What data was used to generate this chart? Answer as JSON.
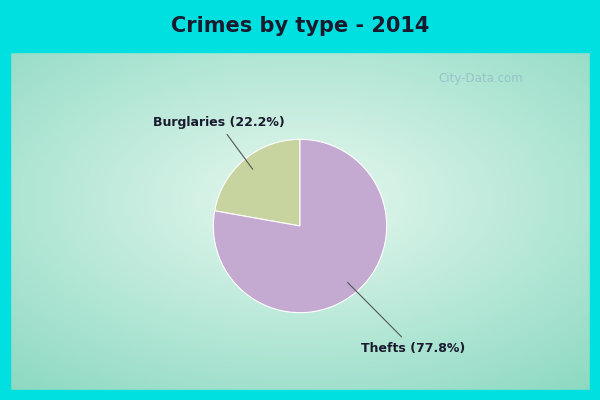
{
  "title": "Crimes by type - 2014",
  "slices": [
    22.2,
    77.8
  ],
  "labels": [
    "Burglaries (22.2%)",
    "Thefts (77.8%)"
  ],
  "colors": [
    "#c8d4a0",
    "#c4aad0"
  ],
  "border_color": "#00e0e0",
  "title_fontsize": 15,
  "label_fontsize": 9,
  "startangle": 90,
  "watermark": "City-Data.com",
  "border_width": 10
}
